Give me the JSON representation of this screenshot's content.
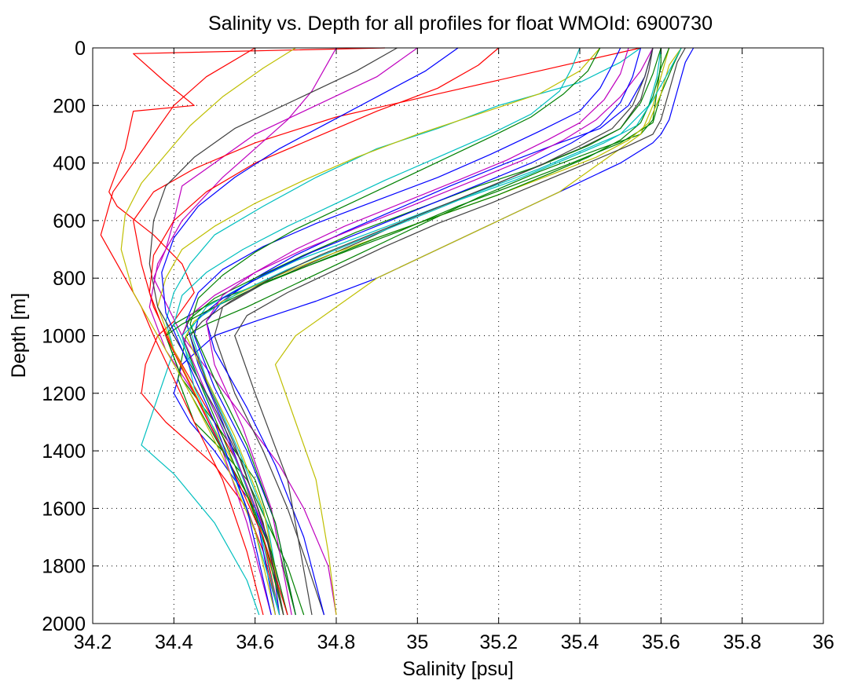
{
  "chart_data": {
    "type": "line",
    "title": "Salinity vs. Depth for all profiles for float WMOId: 6900730",
    "xlabel": "Salinity [psu]",
    "ylabel": "Depth [m]",
    "xlim": [
      34.2,
      36
    ],
    "ylim": [
      2000,
      0
    ],
    "y_reversed": true,
    "grid": true,
    "x_ticks": [
      34.2,
      34.4,
      34.6,
      34.8,
      35,
      35.2,
      35.4,
      35.6,
      35.8,
      36
    ],
    "x_tick_labels": [
      "34.2",
      "34.4",
      "34.6",
      "34.8",
      "35",
      "35.2",
      "35.4",
      "35.6",
      "35.8",
      "36"
    ],
    "y_ticks": [
      0,
      200,
      400,
      600,
      800,
      1000,
      1200,
      1400,
      1600,
      1800,
      2000
    ],
    "y_tick_labels": [
      "0",
      "200",
      "400",
      "600",
      "800",
      "1000",
      "1200",
      "1400",
      "1600",
      "1800",
      "2000"
    ],
    "color_cycle": [
      "#0000ff",
      "#008000",
      "#ff0000",
      "#00bfbf",
      "#bf00bf",
      "#bfbf00",
      "#404040"
    ],
    "series": [
      {
        "x": [
          35.68,
          35.66,
          35.64,
          35.62,
          35.6,
          35.58,
          35.5,
          35.35,
          35.2,
          35.05,
          34.9,
          34.75,
          34.6,
          34.5,
          34.42,
          34.4,
          34.44,
          34.5,
          34.55,
          34.6,
          34.64,
          34.66
        ],
        "y": [
          0,
          50,
          150,
          250,
          300,
          330,
          400,
          500,
          600,
          700,
          800,
          880,
          950,
          1000,
          1100,
          1200,
          1300,
          1400,
          1500,
          1600,
          1750,
          1970
        ]
      },
      {
        "x": [
          35.6,
          35.6,
          35.59,
          35.58,
          35.55,
          35.45,
          35.3,
          35.15,
          35.0,
          34.85,
          34.7,
          34.58,
          34.48,
          34.43,
          34.41,
          34.45,
          34.52,
          34.58,
          34.63,
          34.68,
          34.72
        ],
        "y": [
          0,
          50,
          150,
          250,
          300,
          350,
          430,
          520,
          620,
          720,
          820,
          900,
          960,
          1000,
          1150,
          1300,
          1400,
          1500,
          1650,
          1800,
          1970
        ]
      },
      {
        "x": [
          34.92,
          34.3,
          34.38,
          34.45,
          34.3,
          34.28,
          34.24,
          34.26,
          34.35,
          34.42,
          34.45,
          34.4,
          34.36,
          34.33,
          34.32,
          34.38,
          34.5,
          34.58,
          34.62,
          34.66
        ],
        "y": [
          0,
          20,
          120,
          200,
          220,
          350,
          500,
          550,
          650,
          750,
          850,
          950,
          1000,
          1100,
          1200,
          1300,
          1450,
          1600,
          1750,
          1970
        ]
      },
      {
        "x": [
          35.55,
          35.5,
          35.4,
          35.2,
          35.05,
          34.9,
          34.75,
          34.62,
          34.5,
          34.44,
          34.4,
          34.38,
          34.4,
          34.32,
          34.4,
          34.5,
          34.58,
          34.61
        ],
        "y": [
          0,
          50,
          120,
          200,
          280,
          350,
          450,
          550,
          650,
          750,
          850,
          950,
          1050,
          1380,
          1480,
          1650,
          1850,
          1970
        ]
      },
      {
        "x": [
          35.0,
          34.9,
          34.75,
          34.6,
          34.5,
          34.42,
          34.4,
          34.38,
          34.35,
          34.42,
          34.5,
          34.58,
          34.66,
          34.72,
          34.78,
          34.8
        ],
        "y": [
          0,
          100,
          200,
          300,
          400,
          480,
          600,
          700,
          800,
          1000,
          1150,
          1300,
          1450,
          1600,
          1800,
          1970
        ]
      },
      {
        "x": [
          35.62,
          35.6,
          35.58,
          35.55,
          35.45,
          35.35,
          35.2,
          35.05,
          34.9,
          34.8,
          34.7,
          34.65,
          34.7,
          34.75,
          34.78,
          34.8
        ],
        "y": [
          0,
          100,
          200,
          300,
          400,
          500,
          600,
          700,
          800,
          900,
          1000,
          1100,
          1300,
          1500,
          1750,
          1970
        ]
      },
      {
        "x": [
          35.58,
          35.57,
          35.55,
          35.5,
          35.4,
          35.28,
          35.15,
          35.0,
          34.88,
          34.75,
          34.62,
          34.52,
          34.5,
          34.55,
          34.62,
          34.68,
          34.73,
          34.77
        ],
        "y": [
          0,
          80,
          180,
          280,
          350,
          420,
          500,
          580,
          660,
          740,
          820,
          900,
          1000,
          1200,
          1400,
          1600,
          1800,
          1970
        ]
      },
      {
        "x": [
          35.58,
          35.56,
          35.52,
          35.45,
          35.35,
          35.22,
          35.08,
          34.95,
          34.82,
          34.7,
          34.6,
          34.52,
          34.48,
          34.5,
          34.58,
          34.65,
          34.72,
          34.77
        ],
        "y": [
          0,
          100,
          200,
          280,
          330,
          400,
          480,
          560,
          640,
          720,
          800,
          880,
          950,
          1050,
          1250,
          1450,
          1700,
          1970
        ]
      },
      {
        "x": [
          35.65,
          35.63,
          35.6,
          35.58,
          35.5,
          35.38,
          35.25,
          35.1,
          34.95,
          34.8,
          34.65,
          34.5,
          34.4,
          34.38,
          34.42,
          34.5,
          34.6,
          34.66,
          34.7
        ],
        "y": [
          0,
          60,
          160,
          260,
          330,
          400,
          470,
          550,
          640,
          720,
          800,
          880,
          960,
          1000,
          1150,
          1300,
          1500,
          1750,
          1970
        ]
      },
      {
        "x": [
          35.55,
          35.3,
          35.05,
          34.8,
          34.6,
          34.45,
          34.35,
          34.3,
          34.32,
          34.35,
          34.4,
          34.48,
          34.56,
          34.62,
          34.66
        ],
        "y": [
          0,
          80,
          160,
          240,
          330,
          420,
          500,
          600,
          750,
          900,
          1050,
          1250,
          1450,
          1700,
          1970
        ]
      },
      {
        "x": [
          35.6,
          35.59,
          35.57,
          35.5,
          35.4,
          35.3,
          35.15,
          35.0,
          34.85,
          34.7,
          34.58,
          34.48,
          34.44,
          34.48,
          34.56,
          34.63,
          34.67
        ],
        "y": [
          0,
          100,
          200,
          300,
          360,
          420,
          500,
          580,
          660,
          740,
          820,
          900,
          980,
          1150,
          1400,
          1650,
          1970
        ]
      },
      {
        "x": [
          34.8,
          34.78,
          34.74,
          34.68,
          34.6,
          34.52,
          34.42,
          34.36,
          34.34,
          34.38,
          34.45,
          34.52,
          34.58,
          34.64
        ],
        "y": [
          0,
          50,
          150,
          250,
          350,
          450,
          600,
          750,
          900,
          1050,
          1200,
          1400,
          1650,
          1970
        ]
      },
      {
        "x": [
          35.45,
          35.4,
          35.3,
          35.15,
          35.0,
          34.85,
          34.72,
          34.6,
          34.5,
          34.42,
          34.38,
          34.36,
          34.4,
          34.47,
          34.55,
          34.62,
          34.67
        ],
        "y": [
          0,
          80,
          160,
          230,
          300,
          380,
          460,
          540,
          620,
          700,
          800,
          900,
          1050,
          1250,
          1450,
          1700,
          1970
        ]
      },
      {
        "x": [
          35.66,
          35.64,
          35.62,
          35.6,
          35.58,
          35.52,
          35.42,
          35.3,
          35.18,
          35.05,
          34.92,
          34.8,
          34.68,
          34.58,
          34.55,
          34.6,
          34.68,
          34.74
        ],
        "y": [
          0,
          50,
          150,
          250,
          300,
          340,
          400,
          470,
          540,
          610,
          690,
          770,
          850,
          930,
          1000,
          1200,
          1500,
          1970
        ]
      },
      {
        "x": [
          35.5,
          35.48,
          35.45,
          35.4,
          35.3,
          35.18,
          35.05,
          34.9,
          34.75,
          34.62,
          34.52,
          34.46,
          34.43,
          34.46,
          34.52,
          34.6,
          34.65
        ],
        "y": [
          0,
          60,
          140,
          220,
          290,
          370,
          450,
          530,
          610,
          690,
          770,
          850,
          950,
          1100,
          1300,
          1600,
          1970
        ]
      },
      {
        "x": [
          35.6,
          35.58,
          35.55,
          35.5,
          35.42,
          35.3,
          35.15,
          35.0,
          34.85,
          34.72,
          34.6,
          34.5,
          34.44,
          34.42,
          34.46,
          34.52,
          34.58,
          34.63,
          34.67
        ],
        "y": [
          0,
          90,
          190,
          280,
          340,
          410,
          480,
          560,
          640,
          720,
          800,
          870,
          940,
          1000,
          1150,
          1350,
          1550,
          1750,
          1970
        ]
      },
      {
        "x": [
          34.6,
          34.48,
          34.4,
          34.35,
          34.3,
          34.25,
          34.22,
          34.28,
          34.32,
          34.35,
          34.4,
          34.45,
          34.52,
          34.58,
          34.62
        ],
        "y": [
          0,
          100,
          200,
          300,
          400,
          500,
          650,
          800,
          900,
          1000,
          1150,
          1300,
          1500,
          1750,
          1970
        ]
      },
      {
        "x": [
          35.4,
          35.38,
          35.35,
          35.28,
          35.18,
          35.05,
          34.92,
          34.8,
          34.68,
          34.57,
          34.48,
          34.42,
          34.4,
          34.45,
          34.52,
          34.6,
          34.66
        ],
        "y": [
          0,
          70,
          150,
          230,
          300,
          380,
          460,
          540,
          620,
          700,
          780,
          860,
          960,
          1120,
          1320,
          1600,
          1970
        ]
      },
      {
        "x": [
          35.58,
          35.55,
          35.5,
          35.44,
          35.36,
          35.26,
          35.14,
          35.0,
          34.86,
          34.72,
          34.6,
          34.5,
          34.44,
          34.42,
          34.48,
          34.56,
          34.63,
          34.68
        ],
        "y": [
          0,
          80,
          170,
          250,
          320,
          390,
          460,
          540,
          620,
          700,
          780,
          860,
          930,
          1000,
          1200,
          1450,
          1700,
          1970
        ]
      },
      {
        "x": [
          35.65,
          35.62,
          35.6,
          35.57,
          35.52,
          35.44,
          35.33,
          35.2,
          35.06,
          34.92,
          34.78,
          34.64,
          34.52,
          34.45,
          34.43,
          34.48,
          34.55,
          34.62,
          34.67
        ],
        "y": [
          0,
          60,
          160,
          260,
          320,
          380,
          440,
          510,
          580,
          650,
          720,
          800,
          880,
          950,
          1000,
          1150,
          1350,
          1600,
          1970
        ]
      },
      {
        "x": [
          34.95,
          34.85,
          34.7,
          34.55,
          34.45,
          34.38,
          34.35,
          34.34,
          34.36,
          34.42,
          34.5,
          34.57,
          34.63,
          34.67
        ],
        "y": [
          0,
          80,
          180,
          280,
          380,
          480,
          600,
          750,
          900,
          1050,
          1250,
          1450,
          1700,
          1970
        ]
      },
      {
        "x": [
          35.55,
          35.53,
          35.5,
          35.45,
          35.38,
          35.28,
          35.16,
          35.02,
          34.88,
          34.74,
          34.62,
          34.52,
          34.46,
          34.45,
          34.5,
          34.58,
          34.65,
          34.7
        ],
        "y": [
          0,
          100,
          190,
          270,
          330,
          400,
          470,
          550,
          630,
          710,
          790,
          870,
          940,
          1000,
          1180,
          1400,
          1650,
          1970
        ]
      },
      {
        "x": [
          35.62,
          35.6,
          35.58,
          35.55,
          35.5,
          35.42,
          35.32,
          35.2,
          35.06,
          34.9,
          34.76,
          34.62,
          34.5,
          34.42,
          34.38,
          34.42,
          34.5,
          34.58,
          34.64,
          34.68
        ],
        "y": [
          0,
          70,
          170,
          260,
          320,
          380,
          440,
          510,
          580,
          660,
          740,
          820,
          900,
          960,
          1000,
          1150,
          1350,
          1550,
          1750,
          1970
        ]
      },
      {
        "x": [
          35.2,
          35.15,
          35.05,
          34.9,
          34.75,
          34.6,
          34.48,
          34.4,
          34.35,
          34.34,
          34.38,
          34.45,
          34.54,
          34.62,
          34.68
        ],
        "y": [
          0,
          60,
          140,
          220,
          310,
          400,
          500,
          600,
          720,
          850,
          1000,
          1200,
          1450,
          1700,
          1970
        ]
      },
      {
        "x": [
          35.65,
          35.62,
          35.58,
          35.54,
          35.46,
          35.36,
          35.24,
          35.1,
          34.96,
          34.82,
          34.68,
          34.56,
          34.47,
          34.42,
          34.45,
          34.53,
          34.6,
          34.66
        ],
        "y": [
          0,
          80,
          180,
          270,
          330,
          390,
          460,
          530,
          610,
          690,
          770,
          850,
          930,
          1000,
          1180,
          1420,
          1680,
          1970
        ]
      },
      {
        "x": [
          35.52,
          35.5,
          35.46,
          35.4,
          35.32,
          35.22,
          35.1,
          34.96,
          34.82,
          34.7,
          34.6,
          34.52,
          34.48,
          34.5,
          34.57,
          34.64,
          34.69
        ],
        "y": [
          0,
          90,
          180,
          260,
          320,
          390,
          460,
          540,
          620,
          700,
          780,
          860,
          950,
          1100,
          1320,
          1600,
          1970
        ]
      },
      {
        "x": [
          34.7,
          34.62,
          34.52,
          34.44,
          34.38,
          34.32,
          34.28,
          34.27,
          34.3,
          34.36,
          34.44,
          34.52,
          34.6,
          34.65
        ],
        "y": [
          0,
          70,
          170,
          270,
          370,
          470,
          580,
          700,
          850,
          1000,
          1200,
          1420,
          1680,
          1970
        ]
      },
      {
        "x": [
          35.58,
          35.56,
          35.53,
          35.48,
          35.4,
          35.3,
          35.18,
          35.04,
          34.9,
          34.76,
          34.64,
          34.54,
          34.47,
          34.44,
          34.48,
          34.55,
          34.62,
          34.67
        ],
        "y": [
          0,
          100,
          200,
          280,
          340,
          410,
          480,
          560,
          640,
          720,
          800,
          880,
          950,
          1000,
          1160,
          1380,
          1650,
          1970
        ]
      },
      {
        "x": [
          35.1,
          35.02,
          34.9,
          34.78,
          34.66,
          34.55,
          34.46,
          34.4,
          34.37,
          34.38,
          34.43,
          34.5,
          34.58,
          34.64
        ],
        "y": [
          0,
          80,
          170,
          260,
          350,
          450,
          550,
          660,
          780,
          920,
          1080,
          1300,
          1600,
          1970
        ]
      },
      {
        "x": [
          35.45,
          35.42,
          35.36,
          35.28,
          35.18,
          35.06,
          34.94,
          34.82,
          34.7,
          34.6,
          34.52,
          34.46,
          34.44,
          34.5,
          34.58,
          34.65,
          34.7
        ],
        "y": [
          0,
          80,
          160,
          240,
          310,
          390,
          470,
          550,
          630,
          710,
          790,
          870,
          960,
          1150,
          1380,
          1650,
          1970
        ]
      }
    ]
  }
}
